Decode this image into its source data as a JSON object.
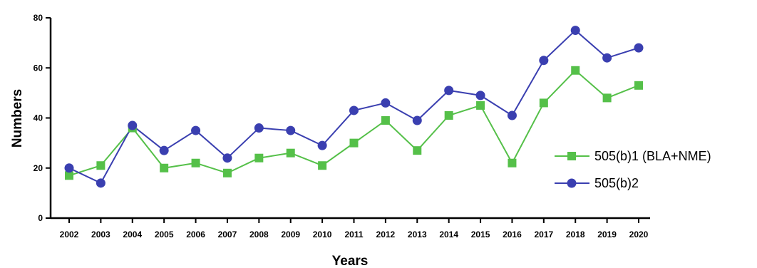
{
  "chart_data": {
    "type": "line",
    "xlabel": "Years",
    "ylabel": "Numbers",
    "ylim": [
      0,
      80
    ],
    "yticks": [
      0,
      20,
      40,
      60,
      80
    ],
    "categories": [
      "2002",
      "2003",
      "2004",
      "2005",
      "2006",
      "2007",
      "2008",
      "2009",
      "2010",
      "2011",
      "2012",
      "2013",
      "2014",
      "2015",
      "2016",
      "2017",
      "2018",
      "2019",
      "2020"
    ],
    "grid": false,
    "legend_position": "right",
    "series": [
      {
        "name": "505(b)1 (BLA+NME)",
        "marker": "square",
        "color": "#55c049",
        "values": [
          17,
          21,
          36,
          20,
          22,
          18,
          24,
          26,
          21,
          30,
          39,
          27,
          41,
          45,
          22,
          46,
          59,
          48,
          53
        ]
      },
      {
        "name": "505(b)2",
        "marker": "circle",
        "color": "#3a3fb0",
        "values": [
          20,
          14,
          37,
          27,
          35,
          24,
          36,
          35,
          29,
          43,
          46,
          39,
          51,
          49,
          41,
          63,
          75,
          64,
          68
        ]
      }
    ]
  }
}
